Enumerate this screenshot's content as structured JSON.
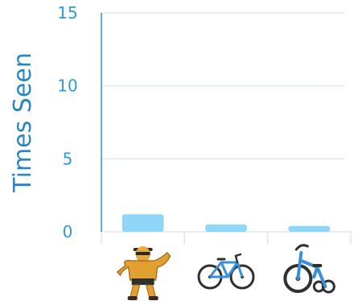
{
  "chart_data": {
    "type": "bar",
    "categories": [
      "strongman",
      "bicycle",
      "tricycle"
    ],
    "values": [
      1.2,
      0.5,
      0.4
    ],
    "ylabel": "Times Seen",
    "xlabel": "",
    "ylim": [
      0,
      15
    ],
    "yticks": [
      0,
      5,
      10,
      15
    ],
    "ytick_labels": [
      "0",
      "5",
      "10",
      "15"
    ],
    "grid": true,
    "legend": "none"
  },
  "colors": {
    "bar": "#8fd6f8",
    "axis": "#5ab4e0",
    "grid": "#dde7ee",
    "tick_text": "#2d9bd6",
    "title_text": "#2a86c3"
  },
  "icons": [
    "strongman-icon",
    "bicycle-icon",
    "tricycle-icon"
  ]
}
